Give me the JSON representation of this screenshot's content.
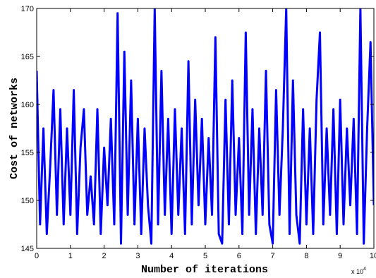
{
  "chart_data": {
    "type": "line",
    "xlabel": "Number of iterations",
    "ylabel": "Cost of networks",
    "x_multiplier": "x 10",
    "x_multiplier_exponent": "4",
    "color": "#0000ff",
    "x": [
      0,
      1000,
      2000,
      3000,
      4000,
      5000,
      6000,
      7000,
      8000,
      9000,
      10000,
      11000,
      12000,
      13000,
      14000,
      15000,
      16000,
      17000,
      18000,
      19000,
      20000,
      21000,
      22000,
      23000,
      24000,
      25000,
      26000,
      27000,
      28000,
      29000,
      30000,
      31000,
      32000,
      33000,
      34000,
      35000,
      36000,
      37000,
      38000,
      39000,
      40000,
      41000,
      42000,
      43000,
      44000,
      45000,
      46000,
      47000,
      48000,
      49000,
      50000,
      51000,
      52000,
      53000,
      54000,
      55000,
      56000,
      57000,
      58000,
      59000,
      60000,
      61000,
      62000,
      63000,
      64000,
      65000,
      66000,
      67000,
      68000,
      69000,
      70000,
      71000,
      72000,
      73000,
      74000,
      75000,
      76000,
      77000,
      78000,
      79000,
      80000,
      81000,
      82000,
      83000,
      84000,
      85000,
      86000,
      87000,
      88000,
      89000,
      90000,
      91000,
      92000,
      93000,
      94000,
      95000,
      96000,
      97000,
      98000,
      99000,
      100000
    ],
    "values": [
      163.5,
      147.5,
      157.5,
      146.5,
      153.5,
      161.5,
      148.5,
      159.5,
      147.5,
      157.5,
      148.5,
      161.5,
      146.5,
      155.5,
      159.5,
      148.5,
      152.5,
      147.5,
      159.5,
      146.5,
      155.5,
      149.5,
      158.5,
      147.5,
      169.5,
      145.5,
      165.5,
      148.5,
      162.5,
      147.5,
      158.5,
      146.5,
      157.5,
      149.5,
      145.5,
      170,
      147.5,
      163.5,
      148.5,
      158.5,
      146.5,
      159.5,
      148.5,
      157.5,
      146.5,
      164.5,
      147.5,
      160.5,
      149.5,
      158.5,
      147.5,
      156.5,
      148.5,
      167,
      146.5,
      145.5,
      160.5,
      147.5,
      162.5,
      148.5,
      156.5,
      146.5,
      167.5,
      148.5,
      159.5,
      146.5,
      157.5,
      148.5,
      163.5,
      147.5,
      145.5,
      161.5,
      148.5,
      157.5,
      170,
      146.5,
      162.5,
      148.5,
      145.5,
      159.5,
      147.5,
      157.5,
      146.5,
      160.5,
      167.5,
      147.5,
      157.5,
      148.5,
      159.5,
      146.5,
      160.5,
      147.5,
      157.5,
      149.5,
      158.5,
      146.5,
      170,
      145.5,
      157.5,
      166.5,
      149.5
    ],
    "xlim": [
      0,
      100000
    ],
    "xticks": [
      {
        "value": 0,
        "label": "0"
      },
      {
        "value": 10000,
        "label": "1"
      },
      {
        "value": 20000,
        "label": "2"
      },
      {
        "value": 30000,
        "label": "3"
      },
      {
        "value": 40000,
        "label": "4"
      },
      {
        "value": 50000,
        "label": "5"
      },
      {
        "value": 60000,
        "label": "6"
      },
      {
        "value": 70000,
        "label": "7"
      },
      {
        "value": 80000,
        "label": "8"
      },
      {
        "value": 90000,
        "label": "9"
      },
      {
        "value": 100000,
        "label": "10"
      }
    ],
    "ylim": [
      145,
      170
    ],
    "yticks": [
      145,
      150,
      155,
      160,
      165,
      170
    ]
  }
}
